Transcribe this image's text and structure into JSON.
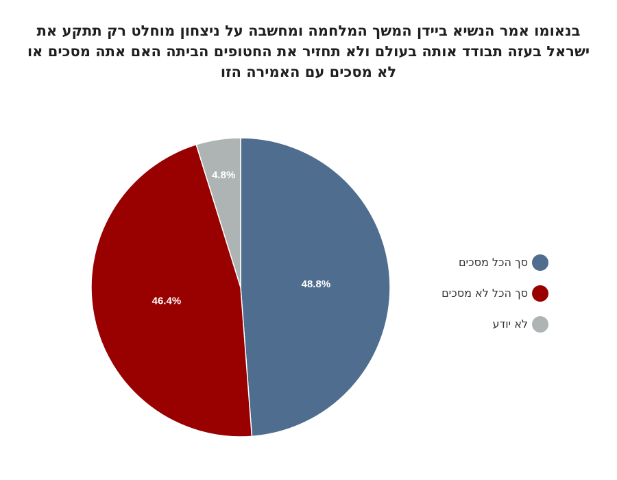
{
  "chart_data": {
    "type": "pie",
    "title": "בנאומו אמר הנשיא ביידן המשך המלחמה ומחשבה על ניצחון מוחלט רק תתקע את ישראל בעזה תבודד אותה בעולם ולא תחזיר את החטופים הביתה האם אתה מסכים או לא מסכים עם האמירה הזו",
    "slices": [
      {
        "name": "סך הכל מסכים",
        "value": 48.8,
        "label": "48.8%",
        "color": "#4f6d8f"
      },
      {
        "name": "סך הכל לא מסכים",
        "value": 46.4,
        "label": "46.4%",
        "color": "#990000"
      },
      {
        "name": "לא יודע",
        "value": 4.8,
        "label": "4.8%",
        "color": "#aeb3b3"
      }
    ],
    "legend_position": "right"
  }
}
